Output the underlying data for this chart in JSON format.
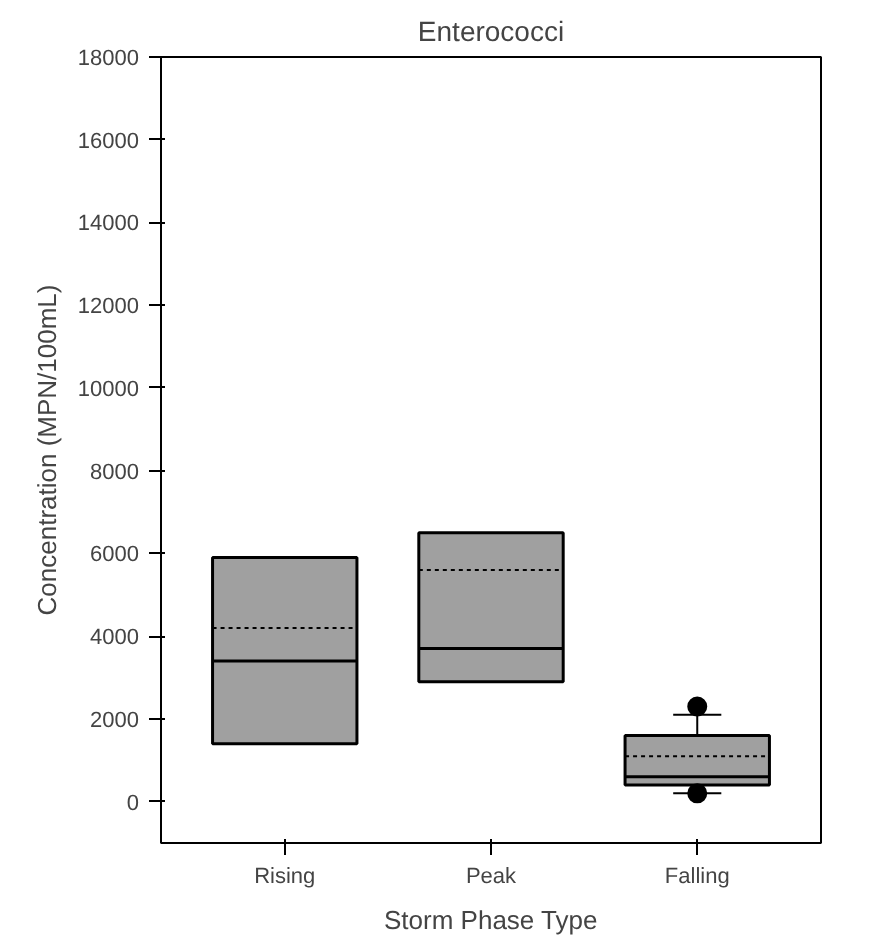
{
  "chart_data": {
    "type": "box",
    "title": "Enterococci",
    "xlabel": "Storm Phase Type",
    "ylabel": "Concentration (MPN/100mL)",
    "categories": [
      "Rising",
      "Peak",
      "Falling"
    ],
    "boxes": [
      {
        "low": 1400,
        "q1": 1400,
        "median": 3400,
        "q3": 5900,
        "high": 5900,
        "mean": 4200
      },
      {
        "low": 2900,
        "q1": 2900,
        "median": 3700,
        "q3": 6500,
        "high": 6500,
        "mean": 5600
      },
      {
        "low": 200,
        "q1": 400,
        "median": 600,
        "q3": 1600,
        "high": 2100,
        "mean": 1100,
        "outliers": [
          2300,
          200
        ]
      }
    ],
    "color": "#a0a0a0",
    "ylim": [
      -1000,
      18000
    ],
    "yticks": [
      0,
      2000,
      4000,
      6000,
      8000,
      10000,
      12000,
      14000,
      16000,
      18000
    ],
    "grid": false
  }
}
